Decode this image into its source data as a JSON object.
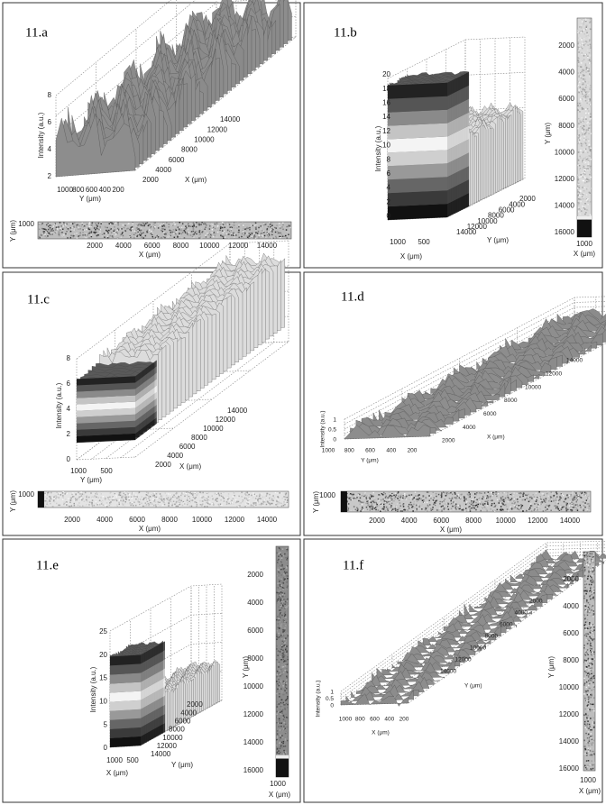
{
  "panels": [
    {
      "label": "11.a",
      "surface": {
        "z_label": "Intensity (a.u.)",
        "z_ticks": [
          2,
          4,
          6,
          8
        ],
        "front_label": "Y (μm)",
        "front_ticks": [
          1000,
          800,
          600,
          400,
          200
        ],
        "depth_label": "X (μm)",
        "depth_ticks": [
          2000,
          4000,
          6000,
          8000,
          10000,
          12000,
          14000
        ]
      },
      "map": {
        "y_label": "Y (μm)",
        "y_ticks": [
          1000
        ],
        "x_label": "X (μm)",
        "x_ticks": [
          2000,
          4000,
          6000,
          8000,
          10000,
          12000,
          14000
        ]
      }
    },
    {
      "label": "11.b",
      "surface": {
        "z_label": "Intensity (a.u.)",
        "z_ticks": [
          0,
          2,
          4,
          6,
          8,
          10,
          12,
          14,
          16,
          18,
          20
        ],
        "front_label": "X (μm)",
        "front_ticks": [
          1000,
          500
        ],
        "depth_label": "Y (μm)",
        "depth_ticks": [
          2000,
          4000,
          6000,
          8000,
          10000,
          12000,
          14000
        ]
      },
      "map": {
        "y_label": "Y (μm)",
        "y_ticks": [
          2000,
          4000,
          6000,
          8000,
          10000,
          12000,
          14000,
          16000
        ],
        "x_label": "X (μm)",
        "x_ticks": [
          1000
        ]
      }
    },
    {
      "label": "11.c",
      "surface": {
        "z_label": "Intensity (a.u.)",
        "z_ticks": [
          0,
          2,
          4,
          6,
          8
        ],
        "front_label": "Y (μm)",
        "front_ticks": [
          1000,
          500
        ],
        "depth_label": "X (μm)",
        "depth_ticks": [
          2000,
          4000,
          6000,
          8000,
          10000,
          12000,
          14000
        ]
      },
      "map": {
        "y_label": "Y (μm)",
        "y_ticks": [
          1000
        ],
        "x_label": "X (μm)",
        "x_ticks": [
          2000,
          4000,
          6000,
          8000,
          10000,
          12000,
          14000
        ]
      }
    },
    {
      "label": "11.d",
      "surface": {
        "z_label": "Intensity (a.u.)",
        "z_ticks": [
          0,
          0.5,
          1
        ],
        "front_label": "Y (μm)",
        "front_ticks": [
          1000,
          800,
          600,
          400,
          200
        ],
        "depth_label": "X (μm)",
        "depth_ticks": [
          2000,
          4000,
          6000,
          8000,
          10000,
          12000,
          14000
        ]
      },
      "map": {
        "y_label": "Y (μm)",
        "y_ticks": [
          1000
        ],
        "x_label": "X (μm)",
        "x_ticks": [
          2000,
          4000,
          6000,
          8000,
          10000,
          12000,
          14000
        ]
      }
    },
    {
      "label": "11.e",
      "surface": {
        "z_label": "Intensity (a.u.)",
        "z_ticks": [
          0,
          5,
          10,
          15,
          20,
          25
        ],
        "front_label": "X (μm)",
        "front_ticks": [
          1000,
          500
        ],
        "depth_label": "Y (μm)",
        "depth_ticks": [
          2000,
          4000,
          6000,
          8000,
          10000,
          12000,
          14000
        ]
      },
      "map": {
        "y_label": "Y (μm)",
        "y_ticks": [
          2000,
          4000,
          6000,
          8000,
          10000,
          12000,
          14000,
          16000
        ],
        "x_label": "X (μm)",
        "x_ticks": [
          1000
        ]
      }
    },
    {
      "label": "11.f",
      "surface": {
        "z_label": "Intensity (a.u.)",
        "z_ticks": [
          0,
          0.5,
          1
        ],
        "front_label": "X (μm)",
        "front_ticks": [
          1000,
          800,
          600,
          400,
          200
        ],
        "depth_label": "Y (μm)",
        "depth_ticks": [
          2000,
          4000,
          6000,
          8000,
          10000,
          12000,
          14000
        ]
      },
      "map": {
        "y_label": "Y (μm)",
        "y_ticks": [
          2000,
          4000,
          6000,
          8000,
          10000,
          12000,
          14000,
          16000
        ],
        "x_label": "X (μm)",
        "x_ticks": [
          1000
        ]
      }
    }
  ]
}
